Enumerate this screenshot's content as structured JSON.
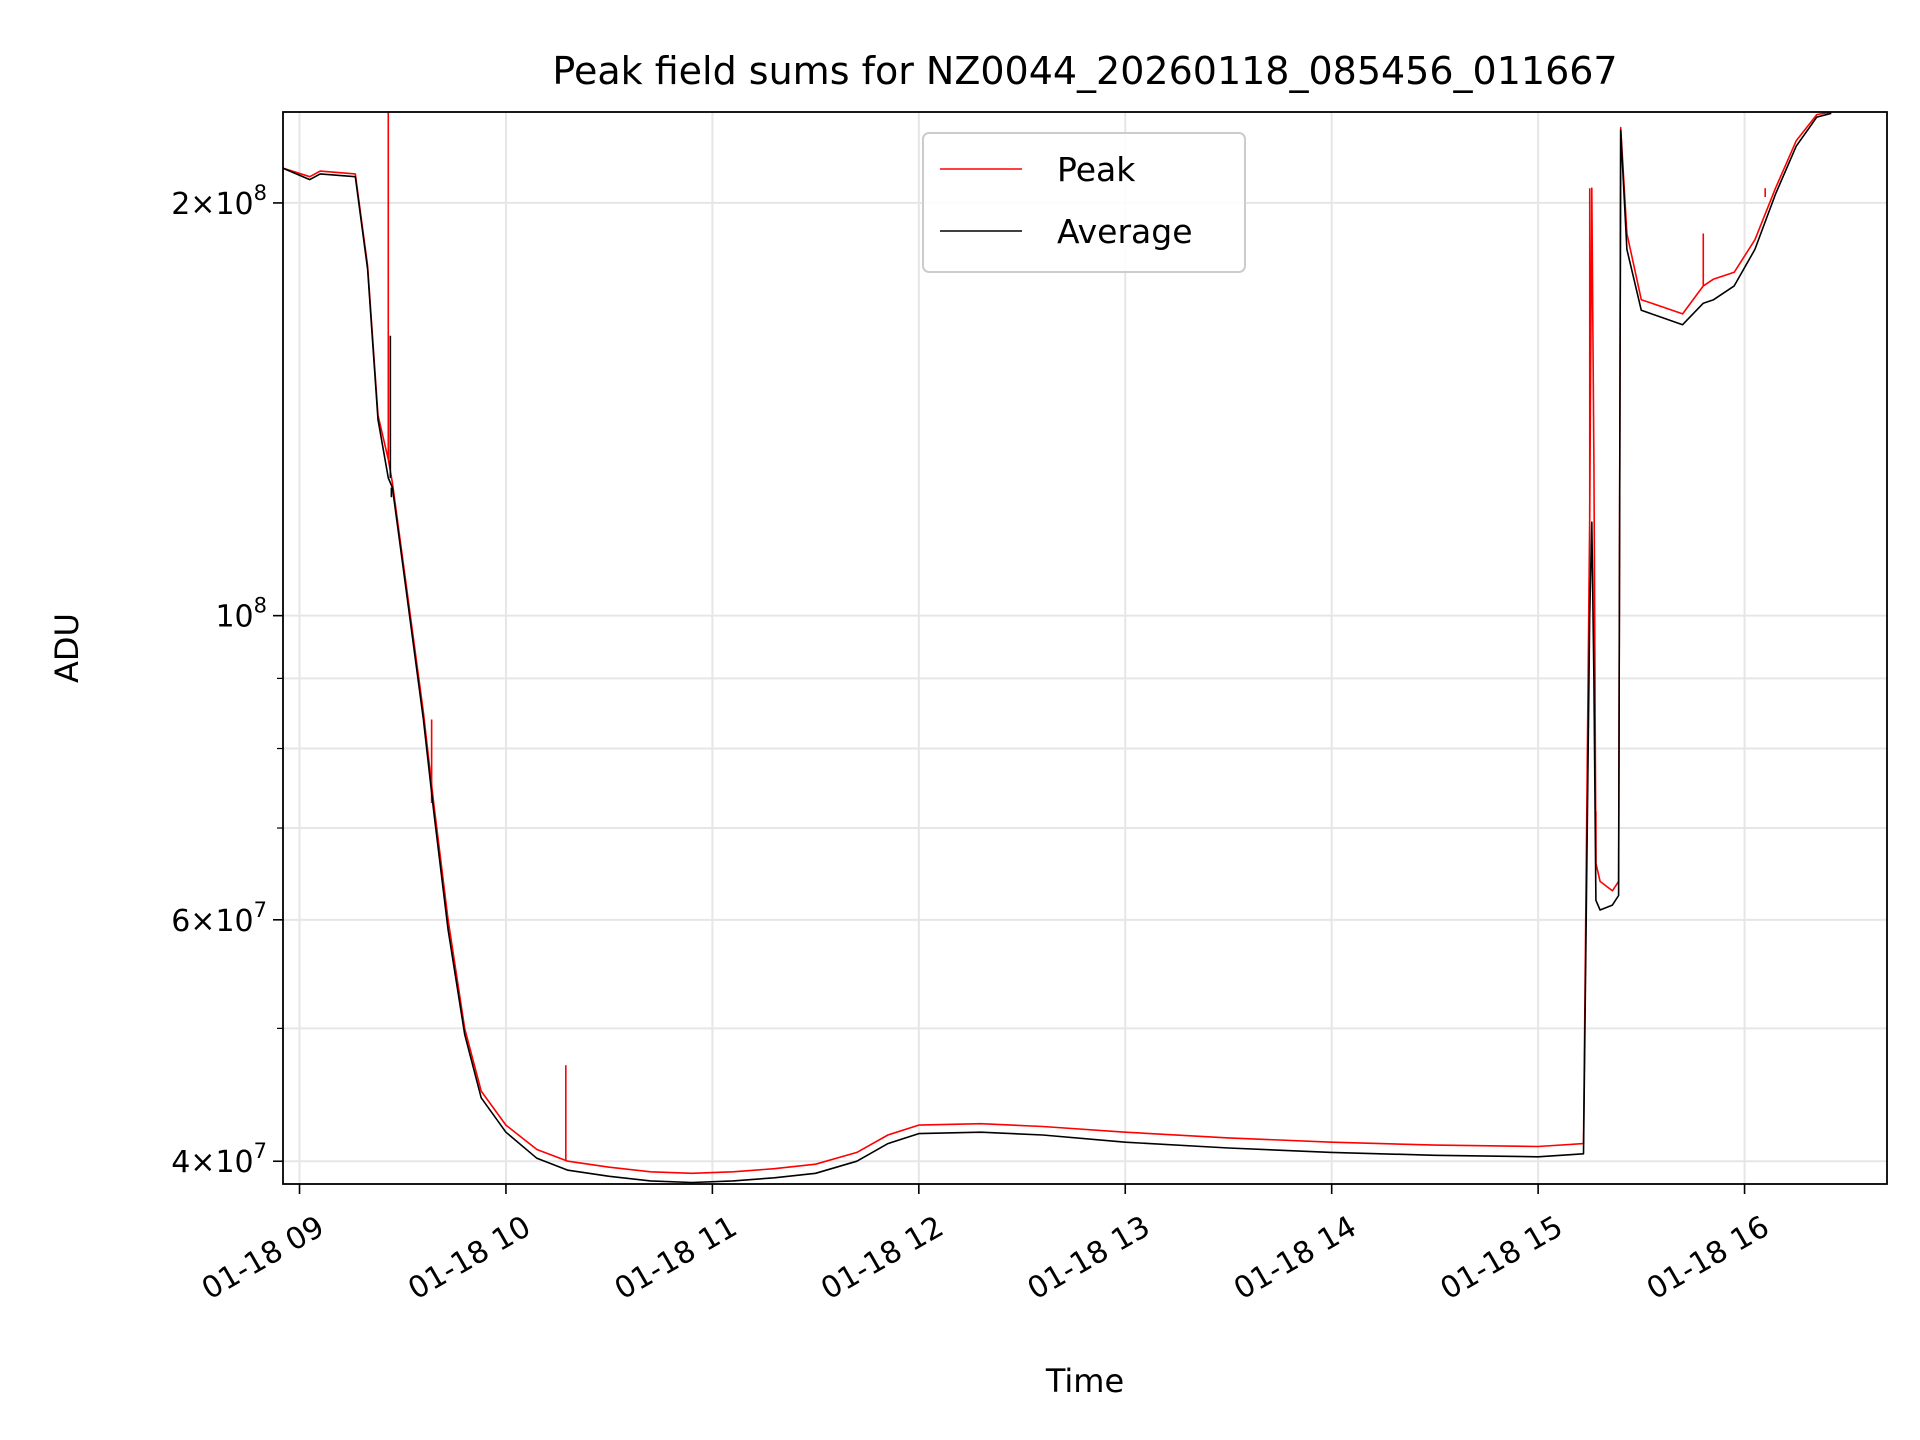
{
  "chart_data": {
    "type": "line",
    "title": "Peak field sums for NZ0044_20260118_085456_011667",
    "xlabel": "Time",
    "ylabel": "ADU",
    "yscale": "log",
    "xlim": [
      8.92,
      16.69
    ],
    "ylim": [
      38500000,
      233000000
    ],
    "grid": true,
    "legend_position": "top-center",
    "x_ticks": [
      {
        "value": 9,
        "label": "01-18 09"
      },
      {
        "value": 10,
        "label": "01-18 10"
      },
      {
        "value": 11,
        "label": "01-18 11"
      },
      {
        "value": 12,
        "label": "01-18 12"
      },
      {
        "value": 13,
        "label": "01-18 13"
      },
      {
        "value": 14,
        "label": "01-18 14"
      },
      {
        "value": 15,
        "label": "01-18 15"
      },
      {
        "value": 16,
        "label": "01-18 16"
      }
    ],
    "y_ticks": [
      {
        "value": 40000000,
        "base": "4",
        "exp": "7"
      },
      {
        "value": 60000000,
        "base": "6",
        "exp": "7"
      },
      {
        "value": 100000000,
        "base": "",
        "exp": "8"
      },
      {
        "value": 200000000,
        "base": "2",
        "exp": "8"
      }
    ],
    "y_minor_ticks": [
      50000000,
      70000000,
      80000000,
      90000000
    ],
    "series": [
      {
        "name": "Peak",
        "color": "#ff0000",
        "points": [
          [
            8.92,
            212000000
          ],
          [
            9.05,
            209000000
          ],
          [
            9.1,
            211000000
          ],
          [
            9.27,
            210000000
          ],
          [
            9.33,
            180000000
          ],
          [
            9.38,
            140000000
          ],
          [
            9.43,
            130000000
          ],
          [
            9.45,
            125000000
          ],
          [
            9.5,
            110000000
          ],
          [
            9.6,
            85000000
          ],
          [
            9.65,
            73000000
          ],
          [
            9.72,
            60000000
          ],
          [
            9.8,
            50000000
          ],
          [
            9.88,
            45000000
          ],
          [
            10.0,
            42500000
          ],
          [
            10.15,
            40800000
          ],
          [
            10.3,
            40000000
          ],
          [
            10.5,
            39600000
          ],
          [
            10.7,
            39300000
          ],
          [
            10.9,
            39200000
          ],
          [
            11.1,
            39300000
          ],
          [
            11.3,
            39500000
          ],
          [
            11.5,
            39800000
          ],
          [
            11.7,
            40600000
          ],
          [
            11.85,
            41800000
          ],
          [
            12.0,
            42500000
          ],
          [
            12.3,
            42600000
          ],
          [
            12.6,
            42400000
          ],
          [
            13.0,
            42000000
          ],
          [
            13.5,
            41600000
          ],
          [
            14.0,
            41300000
          ],
          [
            14.5,
            41100000
          ],
          [
            15.0,
            41000000
          ],
          [
            15.22,
            41200000
          ],
          [
            15.25,
            118000000
          ],
          [
            15.26,
            205000000
          ],
          [
            15.27,
            130000000
          ],
          [
            15.28,
            66000000
          ],
          [
            15.3,
            64000000
          ],
          [
            15.36,
            63000000
          ],
          [
            15.39,
            64000000
          ],
          [
            15.4,
            227000000
          ],
          [
            15.43,
            190000000
          ],
          [
            15.5,
            170000000
          ],
          [
            15.6,
            168000000
          ],
          [
            15.7,
            166000000
          ],
          [
            15.8,
            174000000
          ],
          [
            15.85,
            176000000
          ],
          [
            15.95,
            178000000
          ],
          [
            16.05,
            188000000
          ],
          [
            16.15,
            205000000
          ],
          [
            16.25,
            222000000
          ],
          [
            16.35,
            232000000
          ],
          [
            16.42,
            233000000
          ]
        ],
        "spikes": [
          [
            9.43,
            233000000
          ],
          [
            9.64,
            84000000
          ],
          [
            10.29,
            47000000
          ],
          [
            15.25,
            205000000
          ],
          [
            15.28,
            72000000
          ],
          [
            15.8,
            190000000
          ],
          [
            16.1,
            202000000
          ]
        ]
      },
      {
        "name": "Average",
        "color": "#000000",
        "points": [
          [
            8.92,
            212000000
          ],
          [
            9.05,
            208000000
          ],
          [
            9.1,
            210000000
          ],
          [
            9.27,
            209000000
          ],
          [
            9.33,
            179000000
          ],
          [
            9.38,
            139000000
          ],
          [
            9.43,
            126000000
          ],
          [
            9.45,
            124000000
          ],
          [
            9.5,
            109000000
          ],
          [
            9.6,
            84000000
          ],
          [
            9.65,
            72000000
          ],
          [
            9.72,
            59000000
          ],
          [
            9.8,
            49500000
          ],
          [
            9.88,
            44500000
          ],
          [
            10.0,
            42000000
          ],
          [
            10.15,
            40200000
          ],
          [
            10.3,
            39400000
          ],
          [
            10.5,
            39000000
          ],
          [
            10.7,
            38700000
          ],
          [
            10.9,
            38600000
          ],
          [
            11.1,
            38700000
          ],
          [
            11.3,
            38900000
          ],
          [
            11.5,
            39200000
          ],
          [
            11.7,
            40000000
          ],
          [
            11.85,
            41200000
          ],
          [
            12.0,
            41900000
          ],
          [
            12.3,
            42000000
          ],
          [
            12.6,
            41800000
          ],
          [
            13.0,
            41300000
          ],
          [
            13.5,
            40900000
          ],
          [
            14.0,
            40600000
          ],
          [
            14.5,
            40400000
          ],
          [
            15.0,
            40300000
          ],
          [
            15.22,
            40500000
          ],
          [
            15.25,
            100000000
          ],
          [
            15.26,
            117000000
          ],
          [
            15.27,
            90000000
          ],
          [
            15.28,
            62000000
          ],
          [
            15.3,
            61000000
          ],
          [
            15.36,
            61500000
          ],
          [
            15.39,
            62500000
          ],
          [
            15.4,
            226000000
          ],
          [
            15.43,
            185000000
          ],
          [
            15.5,
            167000000
          ],
          [
            15.6,
            165000000
          ],
          [
            15.7,
            163000000
          ],
          [
            15.8,
            169000000
          ],
          [
            15.85,
            170000000
          ],
          [
            15.95,
            174000000
          ],
          [
            16.05,
            185000000
          ],
          [
            16.15,
            203000000
          ],
          [
            16.25,
            220000000
          ],
          [
            16.35,
            231000000
          ],
          [
            16.42,
            232500000
          ]
        ],
        "spikes": [
          [
            9.44,
            160000000
          ],
          [
            9.445,
            122000000
          ]
        ]
      }
    ]
  }
}
